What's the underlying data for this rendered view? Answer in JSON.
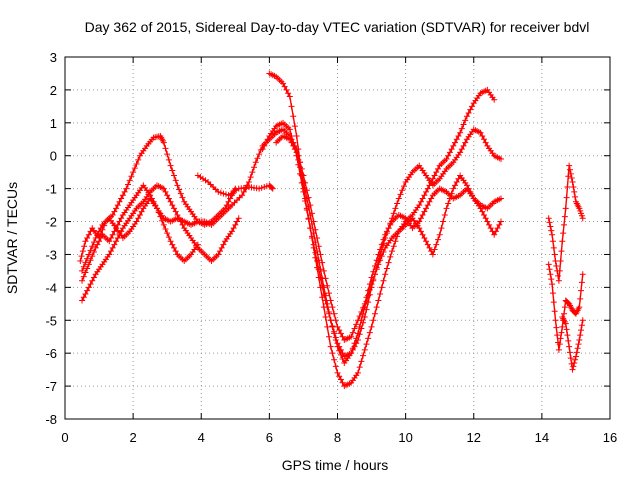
{
  "chart_data": {
    "type": "scatter",
    "title": "Day 362 of 2015, Sidereal Day-to-day VTEC variation (SDTVAR) for receiver bdvl",
    "xlabel": "GPS time / hours",
    "ylabel": "SDTVAR / TECUs",
    "xlim": [
      0,
      16
    ],
    "ylim": [
      -8,
      3
    ],
    "xticks": [
      "0",
      "2",
      "4",
      "6",
      "8",
      "10",
      "12",
      "14",
      "16"
    ],
    "yticks": [
      "-8",
      "-7",
      "-6",
      "-5",
      "-4",
      "-3",
      "-2",
      "-1",
      "0",
      "1",
      "2",
      "3"
    ],
    "grid": true,
    "marker": "plus",
    "color": "#ff0000",
    "series": [
      {
        "x": [
          0.45,
          0.6,
          0.8,
          1.0,
          1.2,
          1.4,
          1.6,
          1.8,
          2.0,
          2.2,
          2.4,
          2.6,
          2.8,
          2.9,
          3.1,
          3.3,
          3.5,
          3.7,
          3.9,
          4.1,
          4.3,
          4.5,
          4.7,
          4.9,
          5.0
        ],
        "y": [
          -3.2,
          -2.6,
          -2.2,
          -2.5,
          -2.0,
          -1.8,
          -1.4,
          -1.0,
          -0.5,
          0.0,
          0.3,
          0.55,
          0.6,
          0.4,
          -0.3,
          -0.9,
          -1.4,
          -1.7,
          -2.0,
          -2.1,
          -2.0,
          -1.8,
          -1.6,
          -1.2,
          -1.0
        ]
      },
      {
        "x": [
          0.5,
          0.7,
          0.9,
          1.1,
          1.3,
          1.5,
          1.7,
          1.9,
          2.1,
          2.3,
          2.5,
          2.7,
          2.9,
          3.1,
          3.3,
          3.5,
          3.7,
          3.9,
          4.1,
          4.3,
          4.5,
          4.7,
          4.9
        ],
        "y": [
          -3.8,
          -3.3,
          -2.8,
          -2.4,
          -2.6,
          -2.2,
          -1.8,
          -1.5,
          -1.2,
          -0.9,
          -1.2,
          -1.6,
          -1.9,
          -2.0,
          -1.9,
          -2.0,
          -2.1,
          -2.0,
          -2.0,
          -2.1,
          -1.9,
          -1.7,
          -1.5
        ]
      },
      {
        "x": [
          0.5,
          0.7,
          0.9,
          1.1,
          1.3,
          1.5,
          1.7,
          1.9,
          2.1,
          2.3,
          2.5,
          2.7,
          2.9,
          3.1,
          3.3,
          3.5,
          3.7,
          3.9,
          4.1,
          4.3,
          4.5,
          4.7,
          4.9,
          5.1
        ],
        "y": [
          -4.4,
          -4.0,
          -3.6,
          -3.3,
          -3.0,
          -2.6,
          -2.2,
          -1.9,
          -1.6,
          -1.4,
          -1.1,
          -0.9,
          -1.0,
          -1.4,
          -1.8,
          -2.2,
          -2.5,
          -2.8,
          -3.0,
          -3.2,
          -3.0,
          -2.6,
          -2.3,
          -1.9
        ]
      },
      {
        "x": [
          0.5,
          0.7,
          0.9,
          1.1,
          1.3,
          1.5,
          1.7,
          1.9,
          2.1,
          2.3,
          2.5,
          2.7,
          2.9,
          3.1,
          3.3,
          3.5,
          3.7,
          3.9
        ],
        "y": [
          -3.5,
          -3.0,
          -2.5,
          -2.1,
          -1.9,
          -2.2,
          -2.5,
          -2.3,
          -2.0,
          -1.6,
          -1.3,
          -1.6,
          -2.1,
          -2.6,
          -3.0,
          -3.2,
          -3.0,
          -2.7
        ]
      },
      {
        "x": [
          3.9,
          4.2,
          4.5,
          4.8,
          5.1,
          5.4,
          5.7,
          6.0,
          6.1
        ],
        "y": [
          -0.6,
          -0.8,
          -1.1,
          -1.2,
          -1.0,
          -0.95,
          -1.0,
          -0.9,
          -1.0
        ]
      },
      {
        "x": [
          4.9,
          5.2,
          5.4,
          5.6,
          5.8,
          6.0,
          6.2,
          6.4,
          6.6,
          6.8,
          7.0,
          7.2,
          7.4,
          7.6,
          7.8,
          8.0,
          8.2,
          8.4,
          8.6,
          8.8,
          9.0,
          9.2,
          9.4,
          9.6,
          9.8,
          10.0,
          10.2,
          10.4,
          10.6,
          10.8,
          11.0,
          11.2,
          11.4,
          11.6,
          11.8,
          12.0,
          12.2,
          12.4,
          12.6,
          12.8
        ],
        "y": [
          -1.5,
          -1.2,
          -0.8,
          -0.2,
          0.3,
          0.5,
          0.7,
          0.8,
          0.6,
          0.2,
          -0.6,
          -1.5,
          -2.5,
          -3.5,
          -4.4,
          -5.2,
          -5.6,
          -5.5,
          -5.0,
          -4.5,
          -3.7,
          -3.0,
          -2.4,
          -2.0,
          -1.8,
          -1.9,
          -2.2,
          -2.0,
          -1.6,
          -1.2,
          -1.0,
          -1.1,
          -1.3,
          -1.2,
          -1.0,
          -1.3,
          -1.5,
          -1.6,
          -1.4,
          -1.3
        ]
      },
      {
        "x": [
          6.0,
          6.2,
          6.4,
          6.6,
          6.8,
          7.0,
          7.2,
          7.4,
          7.6,
          7.8,
          8.0,
          8.2,
          8.4,
          8.6,
          8.8,
          9.0,
          9.2,
          9.4,
          9.6,
          9.8,
          10.0,
          10.2,
          10.4,
          10.6,
          10.8,
          11.0,
          11.2,
          11.4,
          11.6,
          11.8,
          12.0,
          12.2,
          12.4,
          12.6
        ],
        "y": [
          2.5,
          2.4,
          2.2,
          1.8,
          0.6,
          -1.0,
          -2.2,
          -3.4,
          -4.6,
          -5.8,
          -6.6,
          -7.0,
          -6.9,
          -6.6,
          -5.9,
          -5.2,
          -4.4,
          -3.6,
          -2.9,
          -2.3,
          -2.0,
          -1.8,
          -1.5,
          -1.1,
          -0.7,
          -0.3,
          -0.1,
          0.3,
          0.7,
          1.2,
          1.6,
          1.9,
          2.0,
          1.7
        ]
      },
      {
        "x": [
          5.8,
          6.0,
          6.2,
          6.4,
          6.6,
          6.8,
          7.0,
          7.2,
          7.4,
          7.6,
          7.8,
          8.0,
          8.2,
          8.4,
          8.6,
          8.8,
          9.0,
          9.2,
          9.4,
          9.6,
          9.8,
          10.0,
          10.2,
          10.4,
          10.6,
          10.8,
          11.0,
          11.2,
          11.4,
          11.6,
          11.8,
          12.0,
          12.2,
          12.4,
          12.6,
          12.8
        ],
        "y": [
          0.2,
          0.6,
          0.9,
          1.0,
          0.8,
          0.0,
          -1.1,
          -2.2,
          -3.2,
          -4.2,
          -5.0,
          -5.7,
          -6.1,
          -6.0,
          -5.6,
          -4.9,
          -4.0,
          -3.2,
          -2.5,
          -1.9,
          -1.3,
          -0.8,
          -0.5,
          -0.3,
          -0.6,
          -0.9,
          -0.7,
          -0.4,
          -0.2,
          0.1,
          0.5,
          0.8,
          0.7,
          0.3,
          0.0,
          -0.1
        ]
      },
      {
        "x": [
          6.2,
          6.4,
          6.6,
          6.8,
          7.0,
          7.2,
          7.4,
          7.6,
          7.8,
          8.0,
          8.2,
          8.4,
          8.6,
          8.8,
          9.0,
          9.2,
          9.4,
          9.6,
          9.8,
          10.0,
          10.2,
          10.4,
          10.6,
          10.8,
          11.0,
          11.2,
          11.4,
          11.6,
          11.8,
          12.0,
          12.2,
          12.4,
          12.6,
          12.8
        ],
        "y": [
          0.4,
          0.6,
          0.5,
          0.1,
          -0.8,
          -1.8,
          -2.9,
          -4.0,
          -5.0,
          -5.8,
          -6.3,
          -6.0,
          -5.4,
          -4.6,
          -3.9,
          -3.3,
          -2.8,
          -2.5,
          -2.3,
          -2.1,
          -1.9,
          -2.2,
          -2.6,
          -3.0,
          -2.4,
          -1.6,
          -1.0,
          -0.6,
          -0.9,
          -1.3,
          -1.6,
          -2.0,
          -2.4,
          -2.0
        ]
      },
      {
        "x": [
          14.2,
          14.3,
          14.4,
          14.5,
          14.6,
          14.7,
          14.8,
          14.9,
          15.0,
          15.1,
          15.2
        ],
        "y": [
          -1.9,
          -2.4,
          -3.2,
          -3.8,
          -2.6,
          -1.6,
          -0.3,
          -0.8,
          -1.4,
          -1.6,
          -1.9
        ]
      },
      {
        "x": [
          14.2,
          14.3,
          14.4,
          14.5,
          14.6,
          14.7,
          14.8,
          14.9,
          15.0,
          15.1,
          15.2
        ],
        "y": [
          -3.3,
          -3.9,
          -5.0,
          -5.9,
          -5.2,
          -4.4,
          -4.5,
          -4.7,
          -4.8,
          -4.6,
          -3.6
        ]
      },
      {
        "x": [
          14.6,
          14.7,
          14.8,
          14.9,
          15.0,
          15.1,
          15.2
        ],
        "y": [
          -4.9,
          -5.1,
          -5.8,
          -6.5,
          -6.1,
          -5.6,
          -5.0
        ]
      }
    ]
  }
}
